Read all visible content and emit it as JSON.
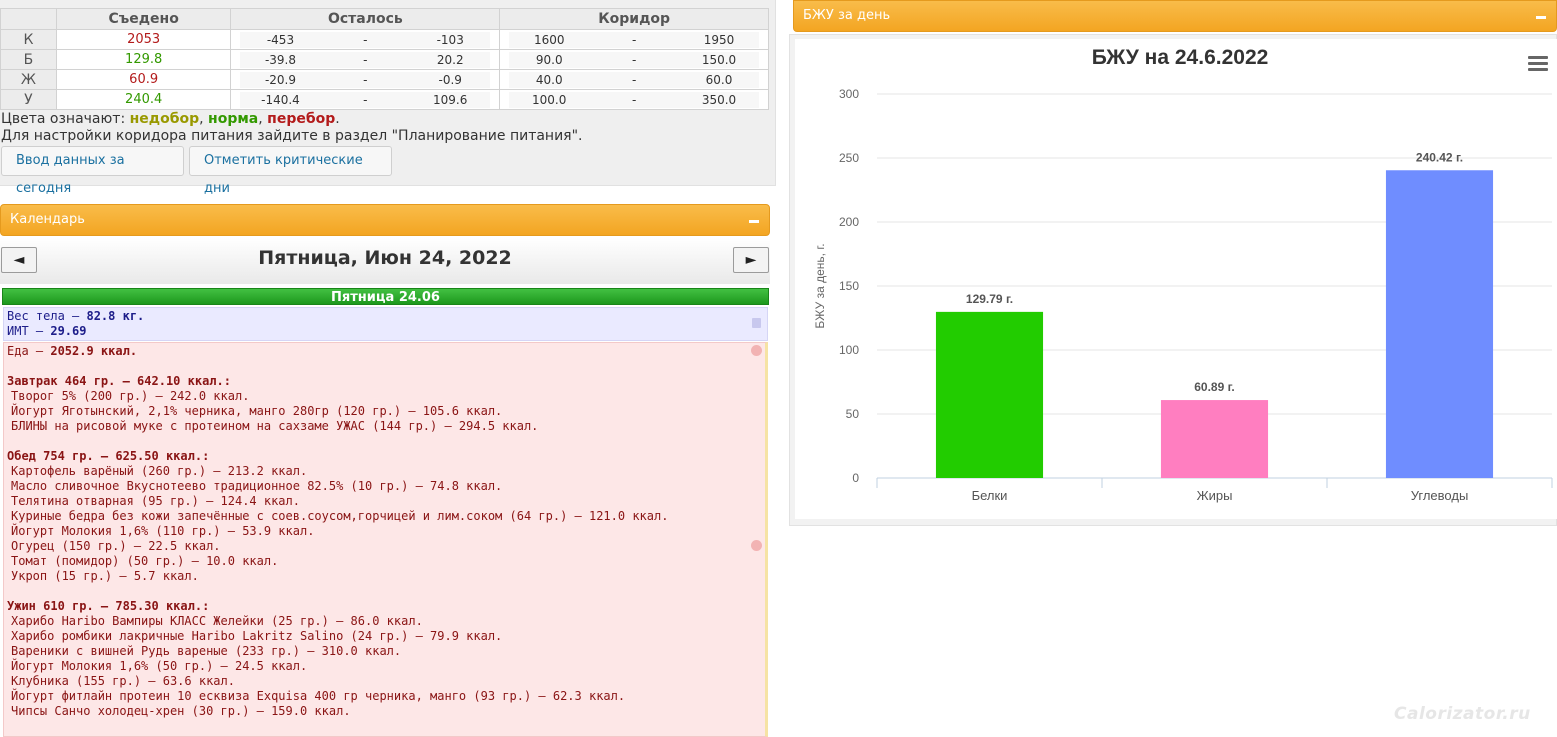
{
  "summary": {
    "headers": [
      "Съедено",
      "Осталось",
      "Коридор"
    ],
    "rows": [
      {
        "label": "К",
        "eaten": "2053",
        "eaten_status": "over",
        "remain_min": "-453",
        "remain_max": "-103",
        "range_min": "1600",
        "range_max": "1950"
      },
      {
        "label": "Б",
        "eaten": "129.8",
        "eaten_status": "norm",
        "remain_min": "-39.8",
        "remain_max": "20.2",
        "range_min": "90.0",
        "range_max": "150.0"
      },
      {
        "label": "Ж",
        "eaten": "60.9",
        "eaten_status": "over",
        "remain_min": "-20.9",
        "remain_max": "-0.9",
        "range_min": "40.0",
        "range_max": "60.0"
      },
      {
        "label": "У",
        "eaten": "240.4",
        "eaten_status": "norm",
        "remain_min": "-140.4",
        "remain_max": "109.6",
        "range_min": "100.0",
        "range_max": "350.0"
      }
    ],
    "dash": "-",
    "legend": {
      "prefix": "Цвета означают:",
      "under": "недобор",
      "norm": "норма",
      "over": "перебор",
      "sep": ",",
      "end": "."
    },
    "hint": "Для настройки коридора питания зайдите в раздел \"Планирование питания\".",
    "buttons": {
      "today": "Ввод данных за сегодня",
      "critical": "Отметить критические дни"
    }
  },
  "calendar": {
    "panel_title": "Календарь",
    "prev": "◄",
    "next": "►",
    "title": "Пятница, Июн 24, 2022",
    "day_label": "Пятница 24.06",
    "weight_label": "Вес тела —",
    "weight_value": "82.8 кг.",
    "bmi_label": "ИМТ —",
    "bmi_value": "29.69",
    "food_total_label": "Еда —",
    "food_total_value": "2052.9 ккал.",
    "meals": [
      {
        "title": "Завтрак 464 гр. — 642.10 ккал.:",
        "items": [
          "Творог 5% (200 гр.) — 242.0 ккал.",
          "Йогурт Яготынский, 2,1% черника, манго 280гр (120 гр.) — 105.6 ккал.",
          "БЛИНЫ на рисовой муке с протеином на сахзаме УЖАС (144 гр.) — 294.5 ккал."
        ]
      },
      {
        "title": "Обед 754 гр. — 625.50 ккал.:",
        "items": [
          "Картофель варёный (260 гр.) — 213.2 ккал.",
          "Масло сливочное Вкуснотеево традиционное 82.5% (10 гр.) — 74.8 ккал.",
          "Телятина отварная (95 гр.) — 124.4 ккал.",
          "Куриные бедра без кожи запечённые с соев.соусом,горчицей и лим.соком (64 гр.) — 121.0 ккал.",
          "Йогурт Молокия 1,6% (110 гр.) — 53.9 ккал.",
          "Огурец (150 гр.) — 22.5 ккал.",
          "Томат (помидор) (50 гр.) — 10.0 ккал.",
          "Укроп (15 гр.) — 5.7 ккал."
        ]
      },
      {
        "title": "Ужин 610 гр. — 785.30 ккал.:",
        "items": [
          "Харибо Haribo Вампиры КЛАСС Желейки (25 гр.) — 86.0 ккал.",
          "Харибо ромбики лакричные Haribo Lakritz Salino (24 гр.) — 79.9 ккал.",
          "Вареники с вишней Рудь вареные (233 гр.) — 310.0 ккал.",
          "Йогурт Молокия 1,6% (50 гр.) — 24.5 ккал.",
          "Клубника (155 гр.) — 63.6 ккал.",
          "Йогурт фитлайн протеин 10 есквиза Exquisa 400 гр черника, манго (93 гр.) — 62.3 ккал.",
          "Чипсы Санчо холодец-хрен (30 гр.) — 159.0 ккал."
        ]
      }
    ]
  },
  "bju_panel": {
    "title": "БЖУ за день"
  },
  "chart_data": {
    "type": "bar",
    "title": "БЖУ на 24.6.2022",
    "ylabel": "БЖУ за день, г.",
    "xlabel": "",
    "categories": [
      "Белки",
      "Жиры",
      "Углеводы"
    ],
    "values": [
      129.79,
      60.89,
      240.42
    ],
    "data_labels": [
      "129.79 г.",
      "60.89 г.",
      "240.42 г."
    ],
    "colors": [
      "#22cc00",
      "#ff7ec0",
      "#6f8dff"
    ],
    "ylim": [
      0,
      300
    ],
    "yticks": [
      0,
      50,
      100,
      150,
      200,
      250,
      300
    ],
    "grid": true,
    "legend": "none"
  },
  "colors": {
    "norm": "#339900",
    "over": "#b31b1b",
    "under": "#999900",
    "accent": "#f3a522"
  },
  "icons": {
    "menu": "hamburger-menu-icon",
    "collapse": "minus-icon",
    "weight": "scale-icon",
    "food": "apple-icon"
  },
  "watermark": "Calorizator.ru"
}
